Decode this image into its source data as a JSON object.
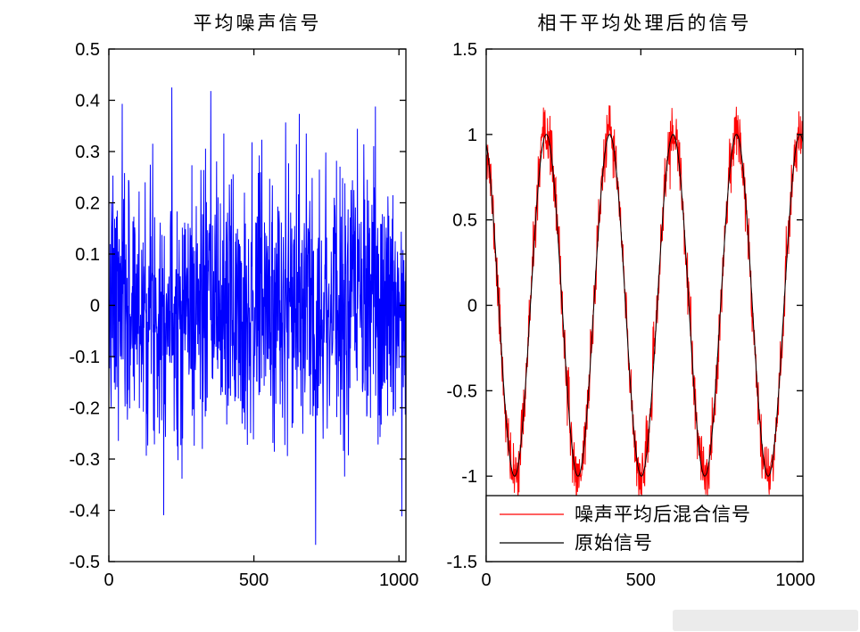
{
  "figure": {
    "background": "#ffffff",
    "axes_color": "#000000"
  },
  "chart_data": [
    {
      "id": "average-noise",
      "type": "line",
      "title": "平均噪声信号",
      "xlabel": "",
      "ylabel": "",
      "xlim": [
        0,
        1024
      ],
      "ylim": [
        -0.5,
        0.5
      ],
      "xticks": [
        "0",
        "500",
        "1000"
      ],
      "yticks": [
        "0.5",
        "0.4",
        "0.3",
        "0.2",
        "0.1",
        "0",
        "-0.1",
        "-0.2",
        "-0.3",
        "-0.4",
        "-0.5"
      ],
      "grid": false,
      "legend": {
        "show": false
      },
      "series": [
        {
          "name": "平均噪声信号",
          "color": "#0000ff",
          "signal": "noise",
          "n": 1024,
          "mean": 0,
          "noise_std": 0.13,
          "approx_min": -0.45,
          "approx_max": 0.44,
          "seed": 7
        }
      ]
    },
    {
      "id": "coherent-averaged-signal",
      "type": "line",
      "title": "相干平均处理后的信号",
      "xlabel": "",
      "ylabel": "",
      "xlim": [
        0,
        1024
      ],
      "ylim": [
        -1.5,
        1.5
      ],
      "xticks": [
        "0",
        "500",
        "1000"
      ],
      "yticks": [
        "1.5",
        "1",
        "0.5",
        "0",
        "-0.5",
        "-1",
        "-1.5"
      ],
      "grid": false,
      "legend": {
        "show": true,
        "position": "south-inside"
      },
      "series": [
        {
          "name": "噪声平均后混合信号",
          "color": "#ff0000",
          "signal": "sine",
          "amplitude": 1.0,
          "cycles": 5,
          "phase_rad": 1.9,
          "n": 1024,
          "noise_std": 0.08,
          "approx_peak": 1.27,
          "seed": 11
        },
        {
          "name": "原始信号",
          "color": "#000000",
          "signal": "sine",
          "amplitude": 1.0,
          "cycles": 5,
          "phase_rad": 1.9,
          "n": 1024,
          "noise_std": 0,
          "seed": 1
        }
      ]
    }
  ]
}
